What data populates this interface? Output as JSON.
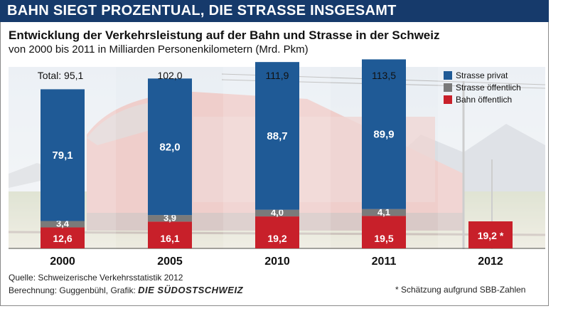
{
  "banner": "BAHN SIEGT PROZENTUAL, DIE STRASSE INSGESAMT",
  "subtitle": "Entwicklung der Verkehrsleistung auf der Bahn und Strasse in der Schweiz",
  "subline": "von 2000 bis 2011 in Milliarden Personenkilometern (Mrd. Pkm)",
  "footer": {
    "source": "Quelle: Schweizerische Verkehrsstatistik 2012",
    "credit": "Berechnung: Guggenbühl, Grafik:",
    "brand": "DIE SÜDOSTSCHWEIZ",
    "note": "* Schätzung aufgrund SBB-Zahlen"
  },
  "chart_data": {
    "type": "bar",
    "stacked": true,
    "categories": [
      "2000",
      "2005",
      "2010",
      "2011",
      "2012"
    ],
    "series": [
      {
        "name": "Bahn öffentlich",
        "color": "#c8202a",
        "values": [
          12.6,
          16.1,
          19.2,
          19.5,
          19.2
        ],
        "labels": [
          "12,6",
          "16,1",
          "19,2",
          "19,5",
          "19,2 *"
        ]
      },
      {
        "name": "Strasse öffentlich",
        "color": "#7a7a7a",
        "values": [
          3.4,
          3.9,
          4.0,
          4.1,
          null
        ],
        "labels": [
          "3,4",
          "3,9",
          "4,0",
          "4,1",
          ""
        ]
      },
      {
        "name": "Strasse privat",
        "color": "#1f5a96",
        "values": [
          79.1,
          82.0,
          88.7,
          89.9,
          null
        ],
        "labels": [
          "79,1",
          "82,0",
          "88,7",
          "89,9",
          ""
        ]
      }
    ],
    "totals": [
      "Total: 95,1",
      "102,0",
      "111,9",
      "113,5",
      ""
    ],
    "legend": [
      "Strasse privat",
      "Strasse öffentlich",
      "Bahn öffentlich"
    ],
    "legend_placement": "top-right",
    "ylim": [
      0,
      120
    ],
    "grid": false
  }
}
